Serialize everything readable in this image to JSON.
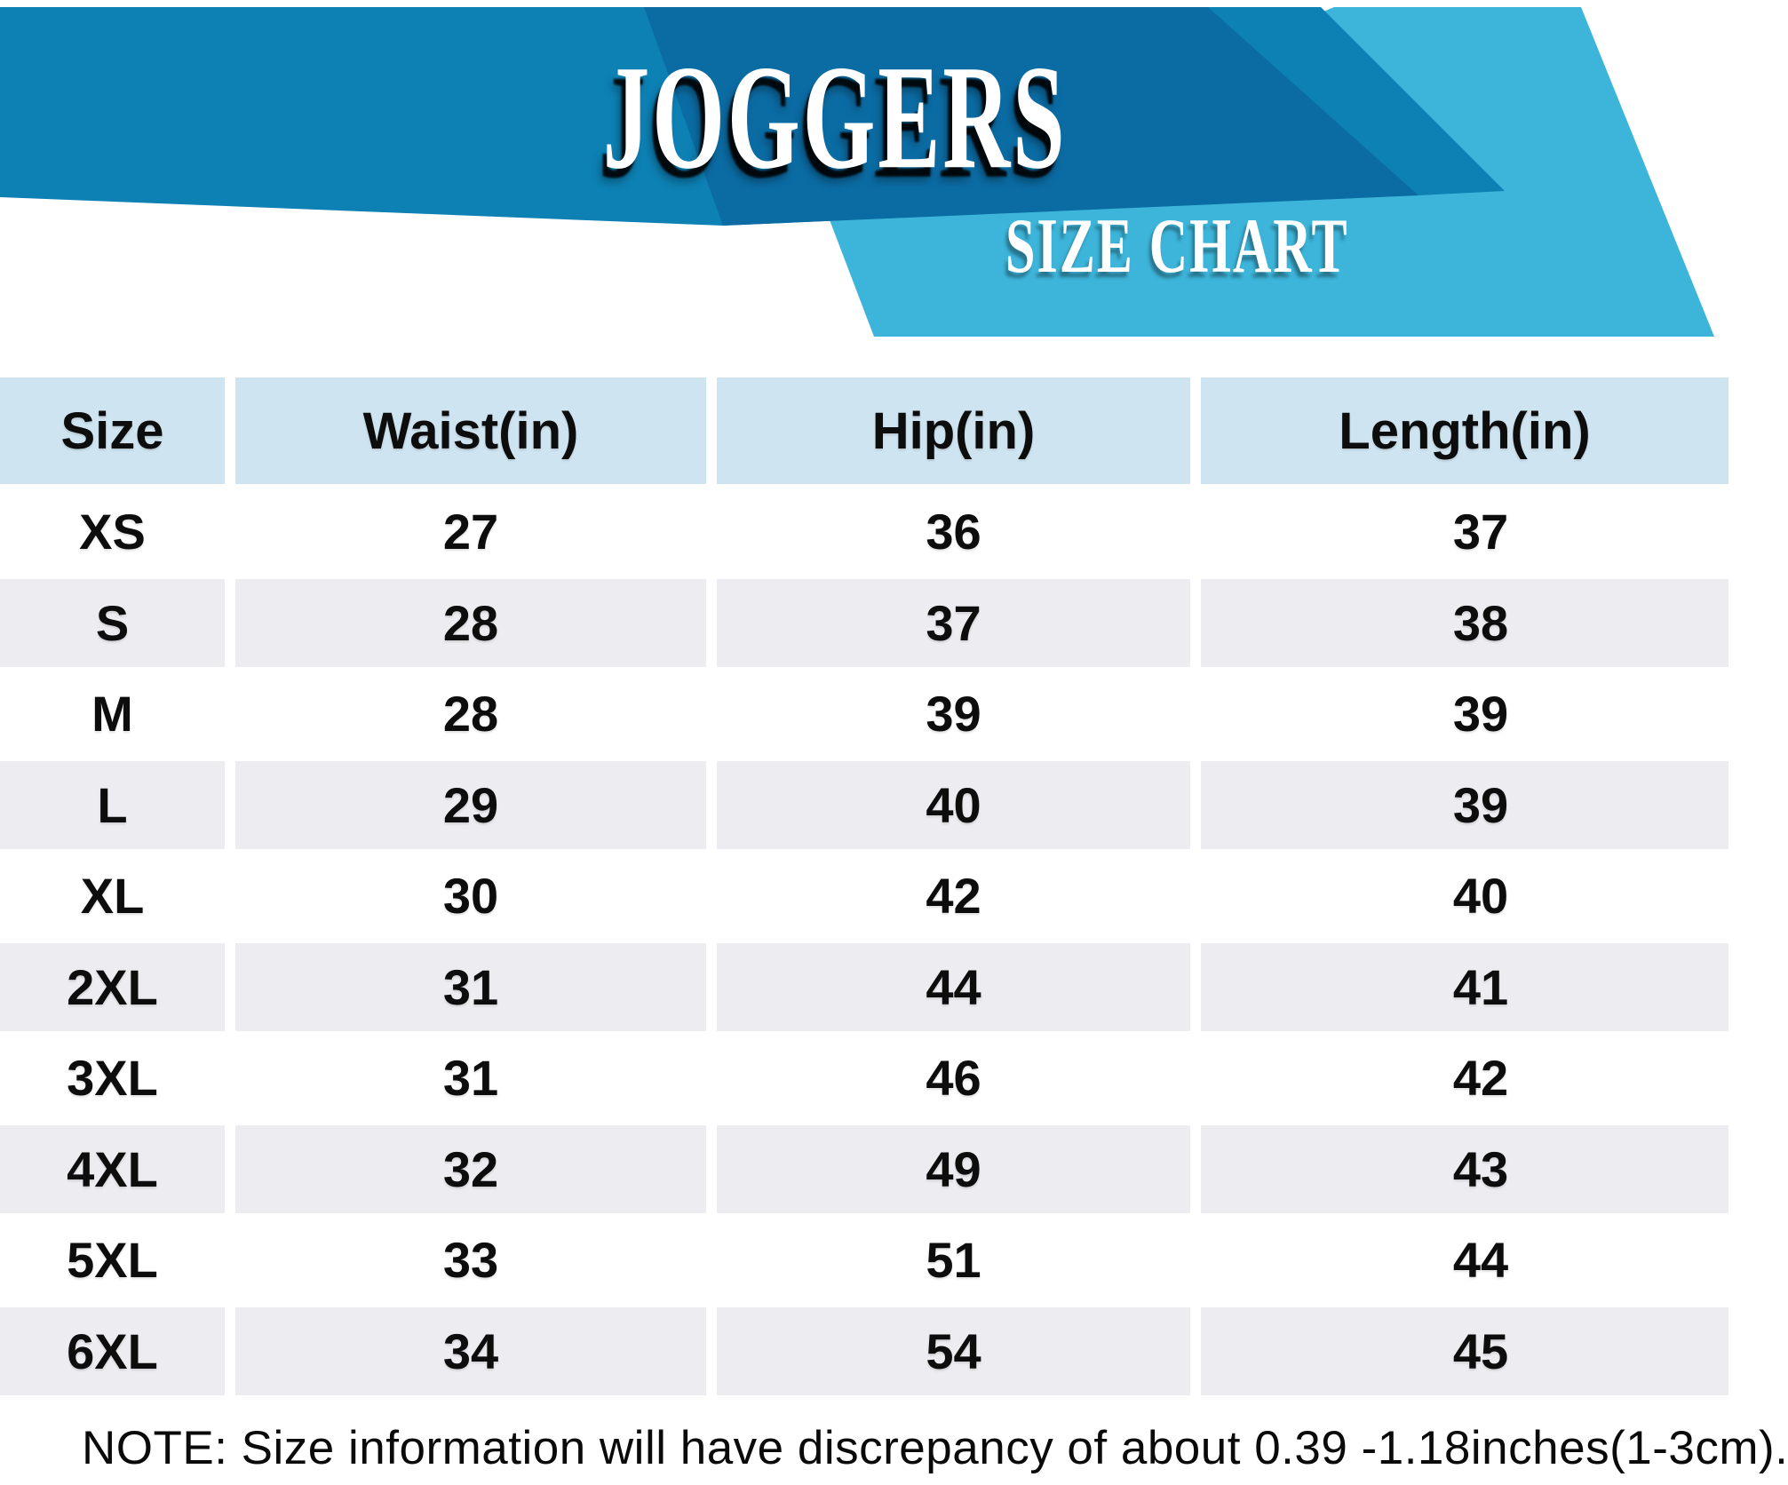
{
  "header": {
    "title": "JOGGERS",
    "subtitle": "SIZE CHART"
  },
  "table": {
    "columns": [
      "Size",
      "Waist(in)",
      "Hip(in)",
      "Length(in)"
    ],
    "rows": [
      {
        "size": "XS",
        "waist": "27",
        "hip": "36",
        "length": "37"
      },
      {
        "size": "S",
        "waist": "28",
        "hip": "37",
        "length": "38"
      },
      {
        "size": "M",
        "waist": "28",
        "hip": "39",
        "length": "39"
      },
      {
        "size": "L",
        "waist": "29",
        "hip": "40",
        "length": "39"
      },
      {
        "size": "XL",
        "waist": "30",
        "hip": "42",
        "length": "40"
      },
      {
        "size": "2XL",
        "waist": "31",
        "hip": "44",
        "length": "41"
      },
      {
        "size": "3XL",
        "waist": "31",
        "hip": "46",
        "length": "42"
      },
      {
        "size": "4XL",
        "waist": "32",
        "hip": "49",
        "length": "43"
      },
      {
        "size": "5XL",
        "waist": "33",
        "hip": "51",
        "length": "44"
      },
      {
        "size": "6XL",
        "waist": "34",
        "hip": "54",
        "length": "45"
      }
    ]
  },
  "note": "NOTE: Size information will have discrepancy of about 0.39 -1.18inches(1-3cm).",
  "colors": {
    "band_base": "#0d80b4",
    "band_dark": "#0b6ca4",
    "band_cyan": "#3db4d9",
    "table_header_bg": "#cfe4f1",
    "row_alt_bg": "#ededf1",
    "row_bg": "#ffffff",
    "text": "#0d0d0d",
    "title_text": "#ffffff"
  }
}
